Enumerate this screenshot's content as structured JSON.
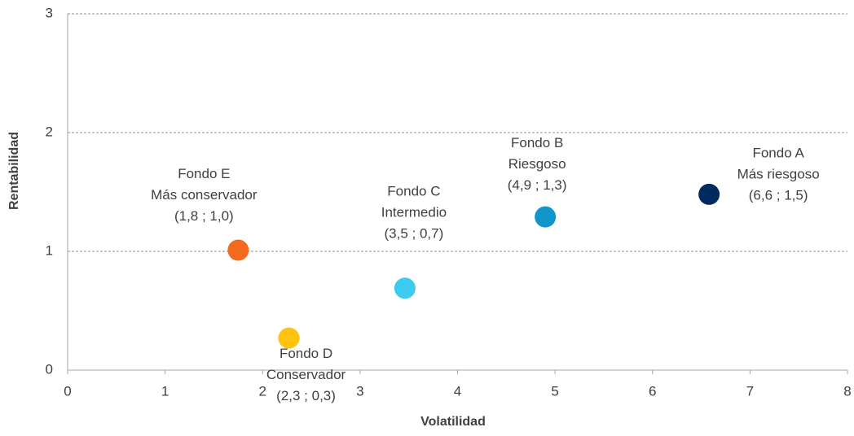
{
  "chart_data": {
    "type": "scatter",
    "x_label": "Volatilidad",
    "y_label": "Rentabilidad",
    "xlim": [
      0,
      8
    ],
    "ylim": [
      0,
      3
    ],
    "xticks": [
      0,
      1,
      2,
      3,
      4,
      5,
      6,
      7,
      8
    ],
    "yticks": [
      0,
      1,
      2,
      3
    ],
    "grid": true,
    "points": [
      {
        "name": "Fondo E",
        "description": "Más conservador",
        "x": 1.75,
        "y": 1.01,
        "value_label": "(1,8 ; 1,0)",
        "color": "#f26b1d"
      },
      {
        "name": "Fondo D",
        "description": "Conservador",
        "x": 2.27,
        "y": 0.27,
        "value_label": "(2,3 ; 0,3)",
        "color": "#ffc20e"
      },
      {
        "name": "Fondo C",
        "description": "Intermedio",
        "x": 3.46,
        "y": 0.69,
        "value_label": "(3,5 ; 0,7)",
        "color": "#3ccaf0"
      },
      {
        "name": "Fondo B",
        "description": "Riesgoso",
        "x": 4.9,
        "y": 1.29,
        "value_label": "(4,9 ; 1,3)",
        "color": "#1196cc"
      },
      {
        "name": "Fondo A",
        "description": "Más riesgoso",
        "x": 6.58,
        "y": 1.48,
        "value_label": "(6,6 ; 1,5)",
        "color": "#002b5c"
      }
    ]
  }
}
